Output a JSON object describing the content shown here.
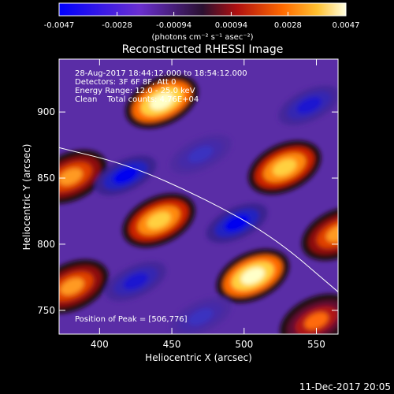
{
  "chart_data": {
    "type": "heatmap",
    "title": "Reconstructed RHESSI Image",
    "xlabel": "Heliocentric X (arcsec)",
    "ylabel": "Heliocentric Y (arcsec)",
    "xlim": [
      372,
      565
    ],
    "ylim": [
      732,
      940
    ],
    "xticks": [
      400,
      450,
      500,
      550
    ],
    "yticks": [
      750,
      800,
      850,
      900
    ],
    "colorbar": {
      "ticks": [
        -0.0047,
        -0.0028,
        -0.00094,
        0.00094,
        0.0028,
        0.0047
      ],
      "tick_labels": [
        "-0.0047",
        "-0.0028",
        "-0.00094",
        "0.00094",
        "0.0028",
        "0.0047"
      ],
      "unit_label": "(photons cm⁻² s⁻¹ asec⁻²)",
      "range": [
        -0.0047,
        0.0047
      ]
    },
    "annotations": [
      "28-Aug-2017 18:44:12.000 to 18:54:12.000",
      "Detectors: 3F 6F 8F, Att 0",
      "Energy Range: 12.0 - 25.0 keV",
      "Clean    Total counts: 4.76E+04"
    ],
    "peak_label": "Position of Peak = [506,776]",
    "peak": [
      506,
      776
    ],
    "limb_curve": [
      [
        372,
        873
      ],
      [
        420,
        860
      ],
      [
        470,
        836
      ],
      [
        520,
        806
      ],
      [
        565,
        764
      ]
    ],
    "blobs": [
      {
        "x": 443,
        "y": 908,
        "value": 0.0045
      },
      {
        "x": 528,
        "y": 858,
        "value": 0.0036
      },
      {
        "x": 441,
        "y": 818,
        "value": 0.0042
      },
      {
        "x": 506,
        "y": 776,
        "value": 0.0047
      },
      {
        "x": 380,
        "y": 851,
        "value": 0.0029
      },
      {
        "x": 381,
        "y": 768,
        "value": 0.0026
      },
      {
        "x": 565,
        "y": 808,
        "value": 0.0026
      },
      {
        "x": 550,
        "y": 742,
        "value": 0.0016
      },
      {
        "x": 418,
        "y": 852,
        "value": -0.0047
      },
      {
        "x": 495,
        "y": 816,
        "value": -0.0047
      },
      {
        "x": 545,
        "y": 905,
        "value": -0.0038
      },
      {
        "x": 425,
        "y": 772,
        "value": -0.0036
      },
      {
        "x": 470,
        "y": 745,
        "value": -0.0032
      },
      {
        "x": 470,
        "y": 868,
        "value": -0.0025
      }
    ]
  },
  "footer": {
    "timestamp": "11-Dec-2017 20:05"
  }
}
